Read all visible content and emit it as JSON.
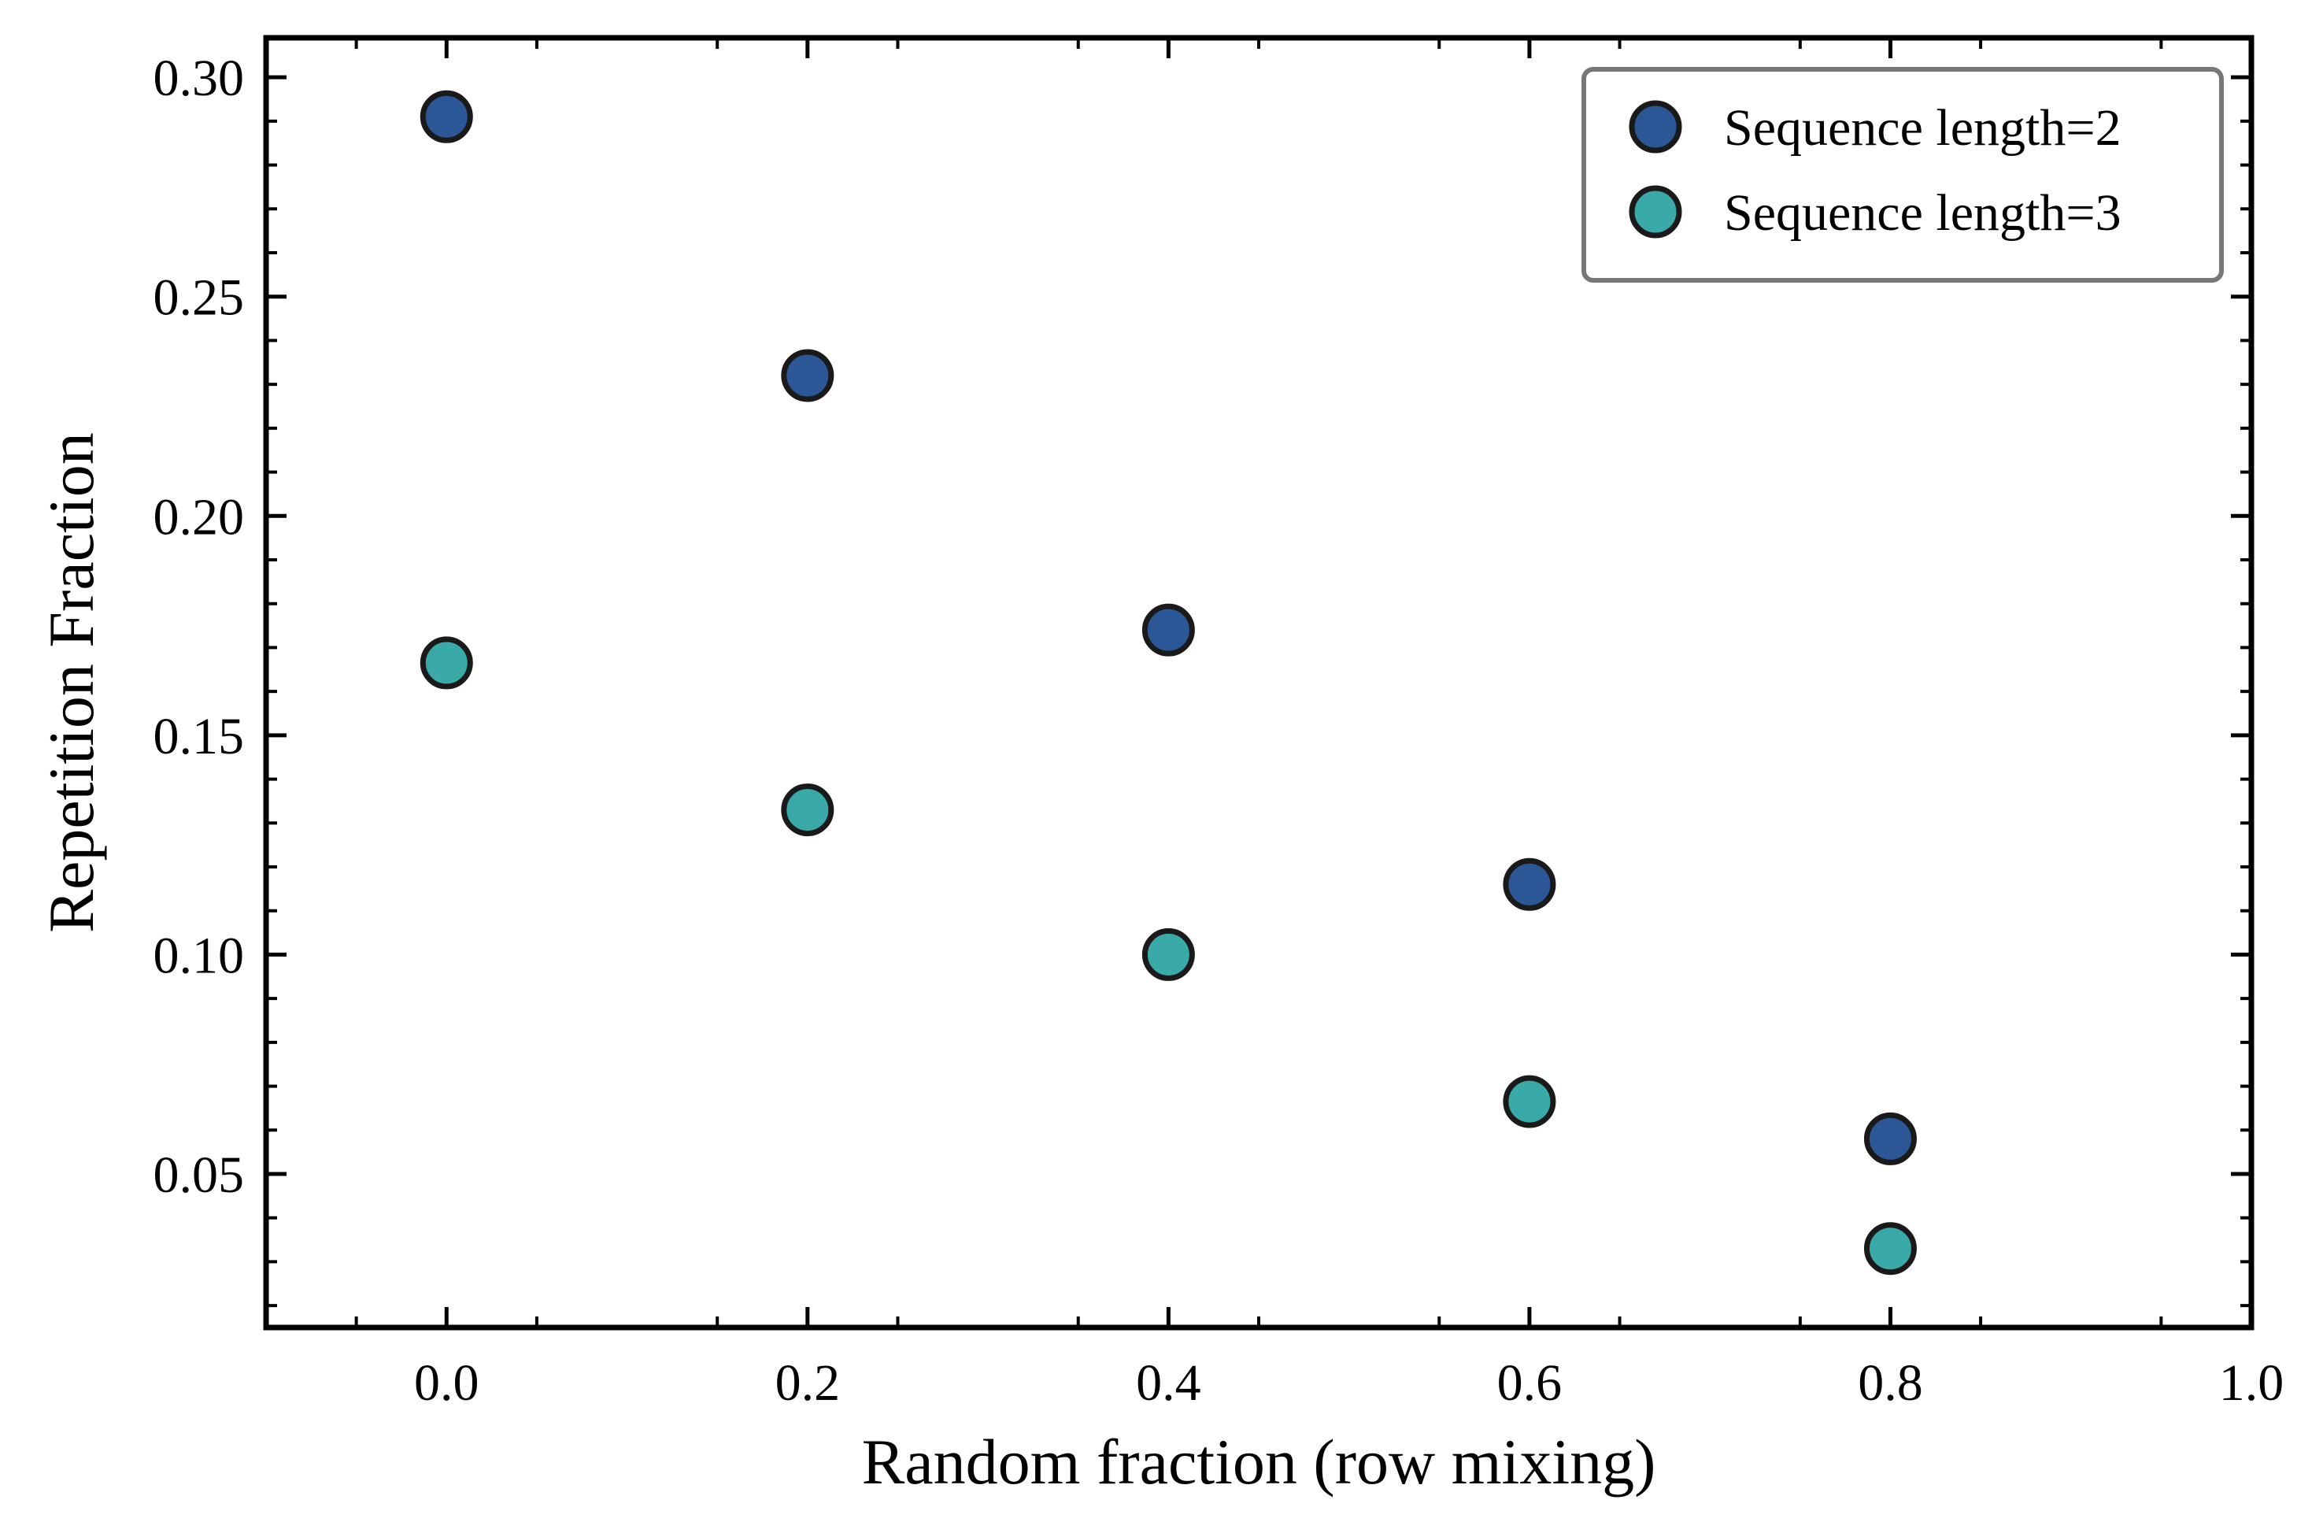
{
  "chart_data": {
    "type": "scatter",
    "xlabel": "Random fraction (row mixing)",
    "ylabel": "Repetition Fraction",
    "xlim": [
      -0.1,
      1.0
    ],
    "ylim": [
      0.015,
      0.309
    ],
    "x_ticks": [
      0.0,
      0.2,
      0.4,
      0.6,
      0.8,
      1.0
    ],
    "x_tick_labels": [
      "0.0",
      "0.2",
      "0.4",
      "0.6",
      "0.8",
      "1.0"
    ],
    "y_ticks": [
      0.05,
      0.1,
      0.15,
      0.2,
      0.25,
      0.3
    ],
    "y_tick_labels": [
      "0.05",
      "0.10",
      "0.15",
      "0.20",
      "0.25",
      "0.30"
    ],
    "grid": false,
    "legend_position": "top-right",
    "series": [
      {
        "name": "Sequence length=2",
        "color": "#2b5797",
        "x": [
          0.0,
          0.2,
          0.4,
          0.6,
          0.8
        ],
        "y": [
          0.291,
          0.232,
          0.174,
          0.116,
          0.058
        ]
      },
      {
        "name": "Sequence length=3",
        "color": "#3aaaa8",
        "x": [
          0.0,
          0.2,
          0.4,
          0.6,
          0.8
        ],
        "y": [
          0.1665,
          0.133,
          0.1,
          0.0665,
          0.033
        ]
      }
    ]
  }
}
